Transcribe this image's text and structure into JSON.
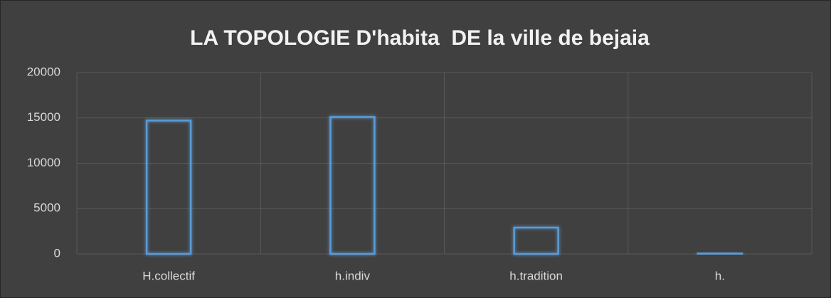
{
  "chart_data": {
    "type": "bar",
    "title": "LA TOPOLOGIE D'habita  DE la ville de bejaia",
    "categories": [
      "H.collectif",
      "h.indiv",
      "h.tradition",
      "h."
    ],
    "values": [
      14700,
      15100,
      2900,
      100
    ],
    "color": "#5b9bd5",
    "ylim": [
      0,
      20000
    ],
    "yticks": [
      0,
      5000,
      10000,
      15000,
      20000
    ],
    "grid": true
  }
}
